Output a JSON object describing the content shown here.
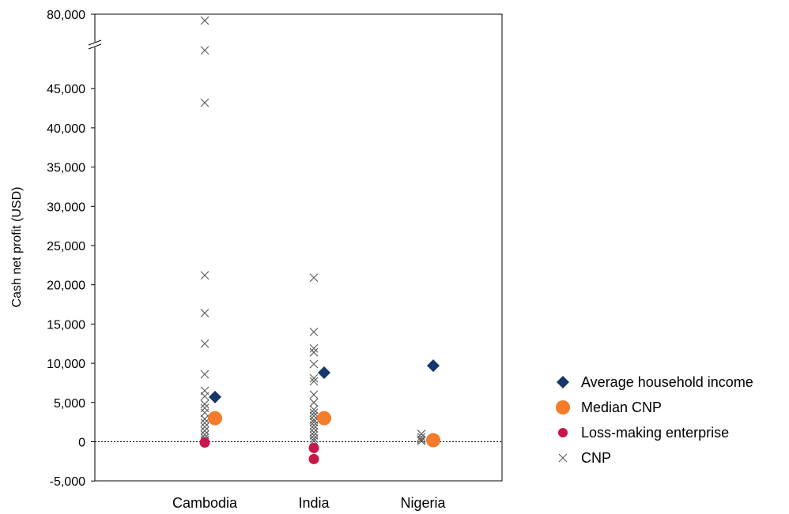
{
  "chart_data": {
    "type": "scatter",
    "ylabel": "Cash net profit (USD)",
    "categories": [
      "Cambodia",
      "India",
      "Nigeria"
    ],
    "y_ticks": [
      {
        "value": -5000,
        "label": "-5,000"
      },
      {
        "value": 0,
        "label": "0"
      },
      {
        "value": 5000,
        "label": "5,000"
      },
      {
        "value": 10000,
        "label": "10,000"
      },
      {
        "value": 15000,
        "label": "15,000"
      },
      {
        "value": 20000,
        "label": "20,000"
      },
      {
        "value": 25000,
        "label": "25,000"
      },
      {
        "value": 30000,
        "label": "30,000"
      },
      {
        "value": 35000,
        "label": "35,000"
      },
      {
        "value": 40000,
        "label": "40,000"
      },
      {
        "value": 45000,
        "label": "45,000"
      },
      {
        "value": 80000,
        "label": "80,000"
      }
    ],
    "axis_break": true,
    "ylim": [
      -5000,
      80000
    ],
    "zero_line": "dotted",
    "legend_position": "right",
    "series": [
      {
        "name": "Average household income",
        "marker": "diamond",
        "color": "#17366b",
        "points": [
          {
            "category": "Cambodia",
            "y": 5700
          },
          {
            "category": "India",
            "y": 8800
          },
          {
            "category": "Nigeria",
            "y": 9700
          }
        ]
      },
      {
        "name": "Median CNP",
        "marker": "circle-large",
        "color": "#f47b2a",
        "points": [
          {
            "category": "Cambodia",
            "y": 3000
          },
          {
            "category": "India",
            "y": 3000
          },
          {
            "category": "Nigeria",
            "y": 200
          }
        ]
      },
      {
        "name": "Loss-making enterprise",
        "marker": "circle-small",
        "color": "#c8164a",
        "points": [
          {
            "category": "Cambodia",
            "y": -100
          },
          {
            "category": "India",
            "y": -800
          },
          {
            "category": "India",
            "y": -2200
          }
        ]
      },
      {
        "name": "CNP",
        "marker": "x",
        "color": "#555555",
        "points": [
          {
            "category": "Cambodia",
            "y": 77000
          },
          {
            "category": "Cambodia",
            "y": 63000
          },
          {
            "category": "Cambodia",
            "y": 43200
          },
          {
            "category": "Cambodia",
            "y": 21200
          },
          {
            "category": "Cambodia",
            "y": 16400
          },
          {
            "category": "Cambodia",
            "y": 12500
          },
          {
            "category": "Cambodia",
            "y": 8600
          },
          {
            "category": "Cambodia",
            "y": 6500
          },
          {
            "category": "Cambodia",
            "y": 5800
          },
          {
            "category": "Cambodia",
            "y": 4800
          },
          {
            "category": "Cambodia",
            "y": 4300
          },
          {
            "category": "Cambodia",
            "y": 3700
          },
          {
            "category": "Cambodia",
            "y": 2900
          },
          {
            "category": "Cambodia",
            "y": 2400
          },
          {
            "category": "Cambodia",
            "y": 1900
          },
          {
            "category": "Cambodia",
            "y": 1400
          },
          {
            "category": "Cambodia",
            "y": 900
          },
          {
            "category": "Cambodia",
            "y": 500
          },
          {
            "category": "Cambodia",
            "y": 200
          },
          {
            "category": "India",
            "y": 20900
          },
          {
            "category": "India",
            "y": 14000
          },
          {
            "category": "India",
            "y": 11900
          },
          {
            "category": "India",
            "y": 11400
          },
          {
            "category": "India",
            "y": 9900
          },
          {
            "category": "India",
            "y": 8100
          },
          {
            "category": "India",
            "y": 7700
          },
          {
            "category": "India",
            "y": 6000
          },
          {
            "category": "India",
            "y": 5000
          },
          {
            "category": "India",
            "y": 4100
          },
          {
            "category": "India",
            "y": 3700
          },
          {
            "category": "India",
            "y": 3300
          },
          {
            "category": "India",
            "y": 2800
          },
          {
            "category": "India",
            "y": 2500
          },
          {
            "category": "India",
            "y": 2100
          },
          {
            "category": "India",
            "y": 1700
          },
          {
            "category": "India",
            "y": 1200
          },
          {
            "category": "India",
            "y": 800
          },
          {
            "category": "India",
            "y": 400
          },
          {
            "category": "India",
            "y": 100
          },
          {
            "category": "Nigeria",
            "y": 1000
          },
          {
            "category": "Nigeria",
            "y": 600
          },
          {
            "category": "Nigeria",
            "y": 300
          },
          {
            "category": "Nigeria",
            "y": 100
          }
        ]
      }
    ]
  }
}
